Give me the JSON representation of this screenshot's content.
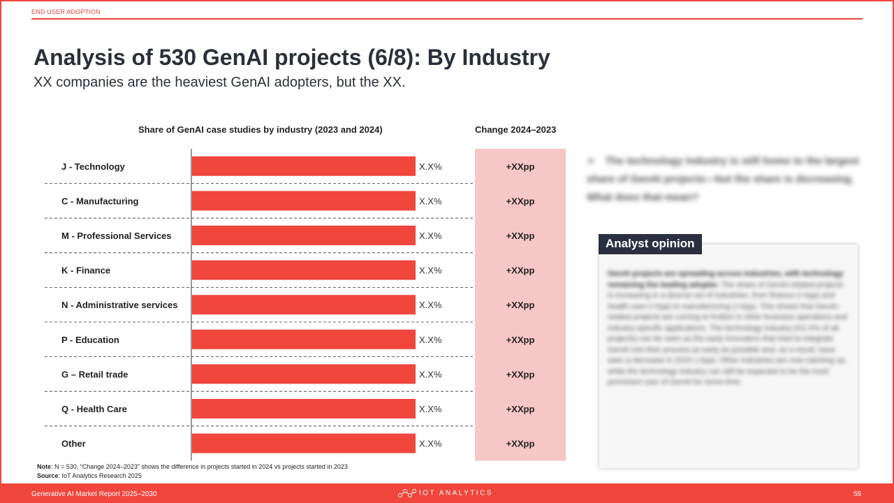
{
  "header": {
    "section": "END USER ADOPTION",
    "title": "Analysis of 530 GenAI projects (6/8): By Industry",
    "subtitle": "XX companies are the heaviest GenAI adopters, but the XX."
  },
  "chart_data": {
    "type": "bar",
    "orientation": "horizontal",
    "title": "Share of GenAI case studies by industry (2023 and 2024)",
    "change_column_title": "Change 2024–2023",
    "categories": [
      "J - Technology",
      "C - Manufacturing",
      "M - Professional Services",
      "K - Finance",
      "N - Administrative services",
      "P - Education",
      "G – Retail trade",
      "Q - Health Care",
      "Other"
    ],
    "value_labels": [
      "X.X%",
      "X.X%",
      "X.X%",
      "X.X%",
      "X.X%",
      "X.X%",
      "X.X%",
      "X.X%",
      "X.X%"
    ],
    "changes": [
      "+XXpp",
      "+XXpp",
      "+XXpp",
      "+XXpp",
      "+XXpp",
      "+XXpp",
      "+XXpp",
      "+XXpp",
      "+XXpp"
    ],
    "values": [
      100,
      100,
      100,
      100,
      100,
      100,
      100,
      100,
      100
    ],
    "bar_color": "#f0463c",
    "change_bg_color": "#f7c6c7",
    "grid": false
  },
  "insight": {
    "arrow": "➤",
    "text": "The technology industry is still home to the largest share of GenAI projects—but the share is decreasing. What does that mean?"
  },
  "analyst": {
    "label": "Analyst opinion",
    "lead": "GenAI projects are spreading across industries, with technology remaining the leading adopter.",
    "body": " The share of GenAI-related projects is increasing in a diverse set of industries, from finance (+Xpp) and health care (+Xpp) to manufacturing (+Xpp). This shows that GenAI-related projects are coming to fruition in other business operations and industry-specific applications. The technology industry (XX.X% of all projects) can be seen as the early innovators that tried to integrate GenAI into their process as early as possible and, as a result, have seen a decrease in 2024 (-Xpp). Other industries are now catching up, while the technology industry can still be expected to be the most prominent user of GenAI for some time."
  },
  "note": {
    "note_label": "Note",
    "note_text": ": N = 530, “Change 2024–2023” shows the difference in projects started in 2024 vs projects started in 2023",
    "source_label": "Source",
    "source_text": ": IoT Analytics Research 2025"
  },
  "footer": {
    "report": "Generative AI Market Report 2025–2030",
    "brand": "IOT ANALYTICS",
    "page": "59"
  },
  "colors": {
    "accent": "#f0463c",
    "dark": "#2b3040"
  }
}
